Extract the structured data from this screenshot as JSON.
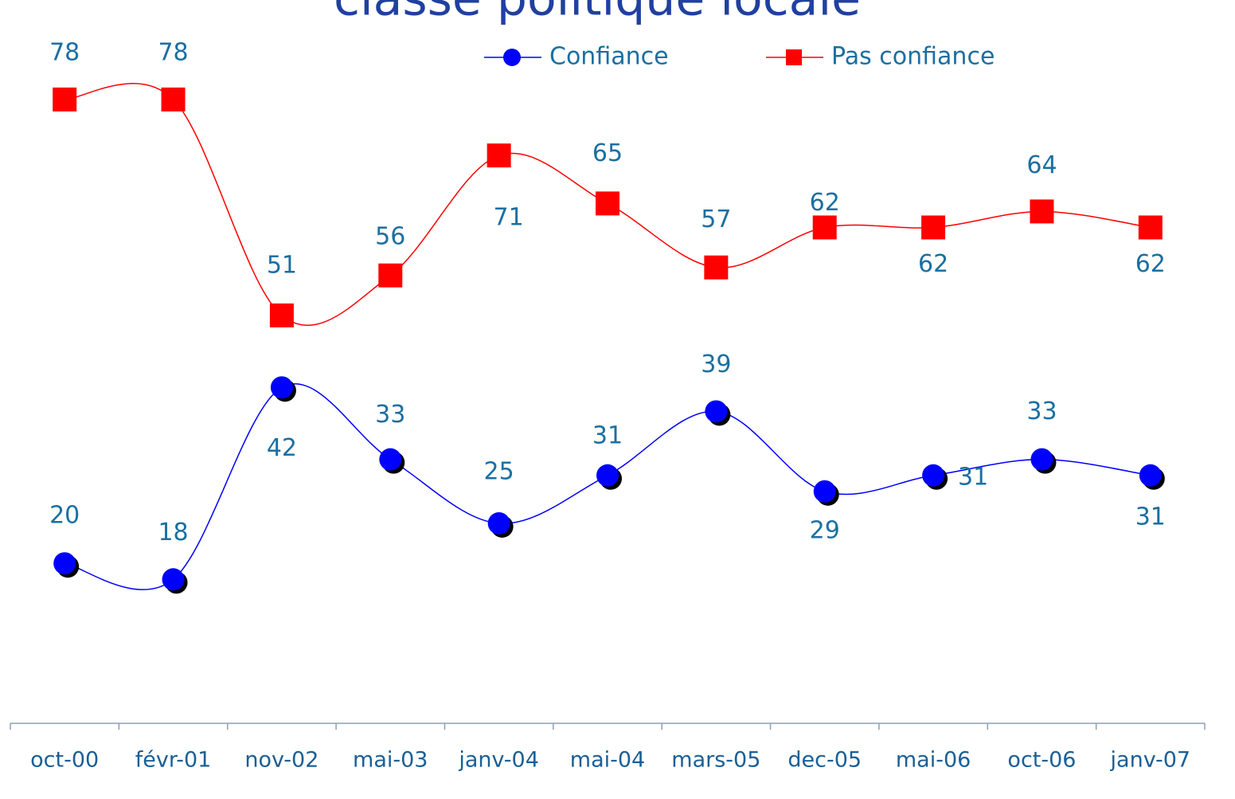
{
  "chart_data": {
    "type": "line",
    "title": "classe politique locale",
    "categories": [
      "oct-00",
      "févr-01",
      "nov-02",
      "mai-03",
      "janv-04",
      "mai-04",
      "mars-05",
      "dec-05",
      "mai-06",
      "oct-06",
      "janv-07"
    ],
    "series": [
      {
        "name": "Confiance",
        "color": "#0000ff",
        "marker": "circle",
        "values": [
          20,
          18,
          42,
          33,
          25,
          31,
          39,
          29,
          31,
          33,
          31
        ]
      },
      {
        "name": "Pas confiance",
        "color": "#ff0000",
        "marker": "square",
        "values": [
          78,
          78,
          51,
          56,
          71,
          65,
          57,
          62,
          62,
          64,
          62
        ]
      }
    ],
    "ylim": [
      0,
      90
    ]
  }
}
